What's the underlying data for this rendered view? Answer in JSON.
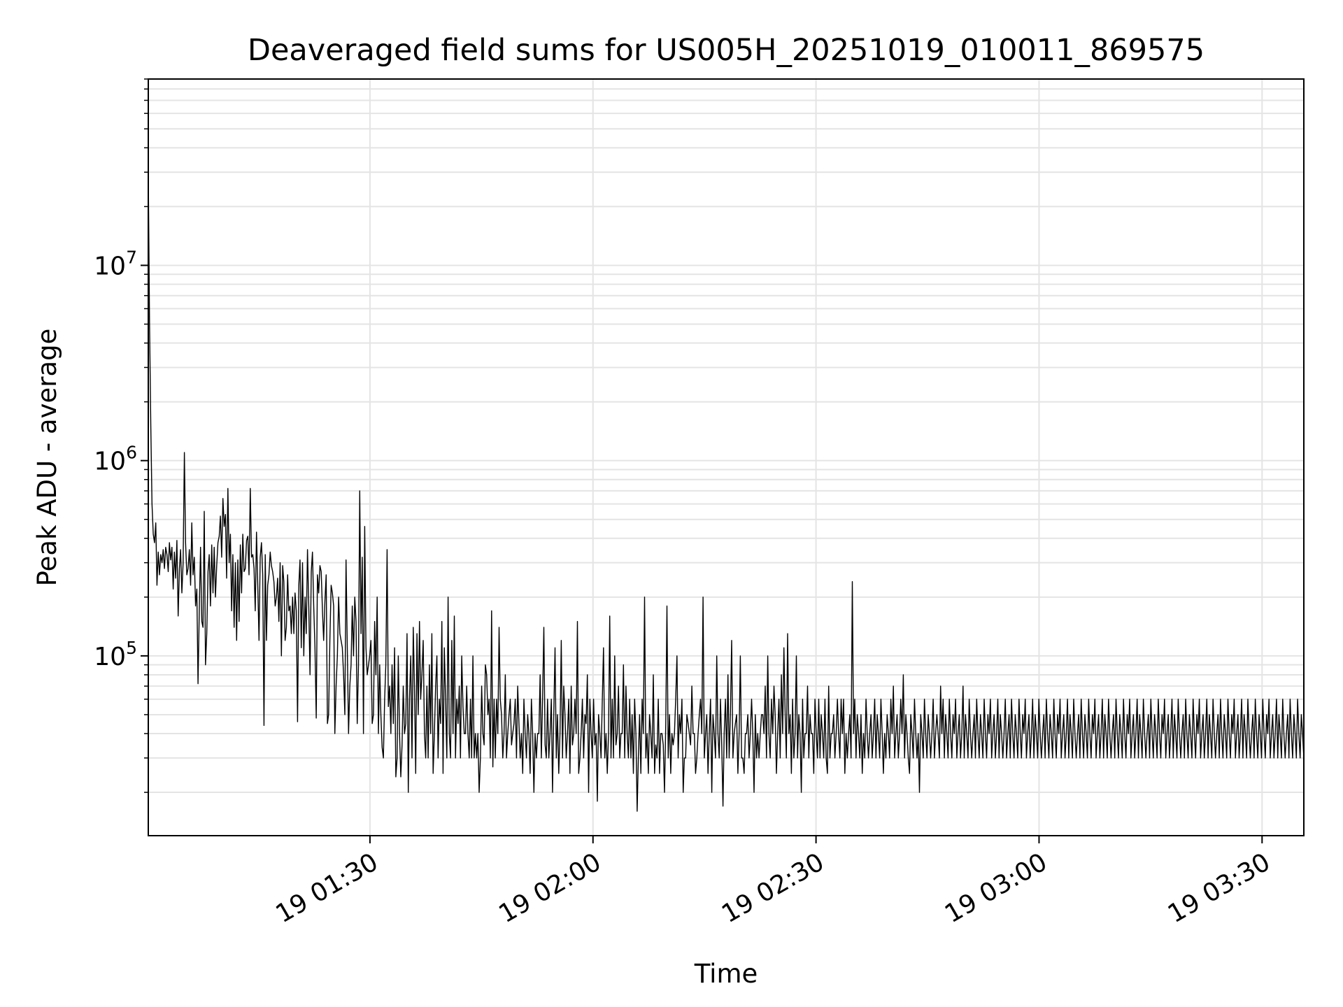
{
  "chart_data": {
    "type": "line",
    "title": "Deaveraged field sums for US005H_20251019_010011_869575",
    "xlabel": "Time",
    "ylabel": "Peak ADU - average",
    "yscale": "log",
    "ylim": [
      12000,
      90000000
    ],
    "xlim": [
      "2025-10-19 01:00:11",
      "2025-10-19 03:35:37"
    ],
    "grid": true,
    "color": "#000000",
    "x_ticks": [
      {
        "time": "2025-10-19 01:30:00",
        "label": "19 01:30"
      },
      {
        "time": "2025-10-19 02:00:00",
        "label": "19 02:00"
      },
      {
        "time": "2025-10-19 02:30:00",
        "label": "19 02:30"
      },
      {
        "time": "2025-10-19 03:00:00",
        "label": "19 03:00"
      },
      {
        "time": "2025-10-19 03:30:00",
        "label": "19 03:30"
      }
    ],
    "y_ticks": [
      {
        "value": 100000,
        "base": "10",
        "exp": "5"
      },
      {
        "value": 1000000,
        "base": "10",
        "exp": "6"
      },
      {
        "value": 10000000,
        "base": "10",
        "exp": "7"
      }
    ],
    "series": [
      {
        "x_start": "2025-10-19 01:00:11",
        "x_end": "2025-10-19 03:35:37",
        "values": [
          30000000,
          5000000,
          1500000,
          600000,
          420000,
          380000,
          480000,
          230000,
          340000,
          260000,
          330000,
          300000,
          350000,
          280000,
          360000,
          330000,
          270000,
          380000,
          310000,
          360000,
          220000,
          340000,
          250000,
          390000,
          160000,
          280000,
          350000,
          210000,
          300000,
          1100000,
          380000,
          260000,
          280000,
          350000,
          230000,
          480000,
          260000,
          320000,
          180000,
          220000,
          72000,
          170000,
          360000,
          150000,
          140000,
          550000,
          90000,
          130000,
          270000,
          330000,
          180000,
          370000,
          210000,
          360000,
          200000,
          290000,
          380000,
          410000,
          520000,
          320000,
          640000,
          460000,
          530000,
          250000,
          720000,
          300000,
          420000,
          170000,
          330000,
          140000,
          300000,
          120000,
          310000,
          150000,
          370000,
          210000,
          420000,
          270000,
          280000,
          390000,
          410000,
          260000,
          720000,
          320000,
          330000,
          280000,
          170000,
          430000,
          230000,
          120000,
          320000,
          380000,
          260000,
          44000,
          330000,
          120000,
          230000,
          260000,
          340000,
          290000,
          270000,
          240000,
          180000,
          200000,
          250000,
          150000,
          300000,
          100000,
          290000,
          240000,
          120000,
          140000,
          260000,
          170000,
          180000,
          130000,
          200000,
          130000,
          210000,
          170000,
          46000,
          230000,
          310000,
          110000,
          300000,
          100000,
          200000,
          130000,
          350000,
          180000,
          80000,
          270000,
          340000,
          180000,
          110000,
          48000,
          260000,
          210000,
          290000,
          270000,
          170000,
          120000,
          190000,
          260000,
          45000,
          50000,
          120000,
          230000,
          210000,
          180000,
          40000,
          70000,
          100000,
          200000,
          130000,
          120000,
          110000,
          80000,
          50000,
          310000,
          110000,
          40000,
          70000,
          90000,
          180000,
          100000,
          200000,
          150000,
          45000,
          90000,
          700000,
          130000,
          320000,
          40000,
          460000,
          110000,
          80000,
          90000,
          100000,
          120000,
          45000,
          50000,
          150000,
          80000,
          200000,
          40000,
          90000,
          50000,
          34000,
          30000,
          60000,
          90000,
          350000,
          55000,
          70000,
          40000,
          90000,
          45000,
          110000,
          24000,
          30000,
          100000,
          40000,
          24000,
          35000,
          70000,
          40000,
          45000,
          130000,
          20000,
          60000,
          100000,
          30000,
          140000,
          70000,
          25000,
          130000,
          50000,
          150000,
          60000,
          80000,
          120000,
          40000,
          30000,
          70000,
          30000,
          90000,
          40000,
          130000,
          25000,
          40000,
          70000,
          100000,
          30000,
          60000,
          45000,
          150000,
          25000,
          110000,
          60000,
          30000,
          200000,
          40000,
          30000,
          120000,
          40000,
          160000,
          30000,
          60000,
          45000,
          70000,
          30000,
          100000,
          55000,
          40000,
          40000,
          70000,
          40000,
          30000,
          60000,
          30000,
          100000,
          30000,
          40000,
          30000,
          40000,
          20000,
          30000,
          70000,
          40000,
          35000,
          90000,
          80000,
          50000,
          60000,
          30000,
          170000,
          27000,
          60000,
          30000,
          60000,
          40000,
          140000,
          60000,
          50000,
          30000,
          40000,
          80000,
          30000,
          40000,
          50000,
          60000,
          35000,
          40000,
          45000,
          60000,
          30000,
          70000,
          45000,
          30000,
          40000,
          25000,
          60000,
          40000,
          30000,
          50000,
          40000,
          25000,
          60000,
          40000,
          20000,
          40000,
          30000,
          40000,
          40000,
          80000,
          30000,
          60000,
          140000,
          35000,
          30000,
          60000,
          30000,
          40000,
          60000,
          20000,
          50000,
          110000,
          30000,
          50000,
          25000,
          40000,
          120000,
          30000,
          70000,
          50000,
          30000,
          40000,
          60000,
          25000,
          70000,
          35000,
          40000,
          60000,
          40000,
          150000,
          25000,
          30000,
          40000,
          60000,
          30000,
          50000,
          45000,
          80000,
          20000,
          60000,
          40000,
          30000,
          60000,
          35000,
          40000,
          18000,
          50000,
          40000,
          30000,
          60000,
          110000,
          30000,
          40000,
          25000,
          40000,
          160000,
          30000,
          60000,
          30000,
          100000,
          35000,
          40000,
          70000,
          30000,
          40000,
          40000,
          90000,
          30000,
          70000,
          40000,
          30000,
          60000,
          30000,
          50000,
          25000,
          60000,
          40000,
          16000,
          30000,
          50000,
          25000,
          60000,
          40000,
          200000,
          30000,
          40000,
          25000,
          50000,
          40000,
          30000,
          80000,
          25000,
          35000,
          30000,
          60000,
          25000,
          40000,
          40000,
          35000,
          20000,
          45000,
          180000,
          30000,
          50000,
          25000,
          40000,
          35000,
          40000,
          60000,
          100000,
          30000,
          50000,
          40000,
          60000,
          20000,
          30000,
          30000,
          50000,
          45000,
          40000,
          35000,
          70000,
          40000,
          40000,
          25000,
          30000,
          40000,
          50000,
          60000,
          40000,
          200000,
          30000,
          40000,
          50000,
          25000,
          40000,
          60000,
          20000,
          50000,
          40000,
          30000,
          100000,
          40000,
          30000,
          60000,
          35000,
          17000,
          40000,
          60000,
          30000,
          80000,
          30000,
          50000,
          120000,
          30000,
          40000,
          45000,
          50000,
          25000,
          40000,
          100000,
          30000,
          30000,
          25000,
          40000,
          40000,
          50000,
          30000,
          40000,
          60000,
          40000,
          20000,
          50000,
          30000,
          40000,
          30000,
          40000,
          50000,
          50000,
          40000,
          70000,
          30000,
          100000,
          40000,
          30000,
          60000,
          40000,
          70000,
          50000,
          25000,
          40000,
          60000,
          30000,
          80000,
          40000,
          110000,
          50000,
          30000,
          130000,
          40000,
          50000,
          25000,
          60000,
          30000,
          40000,
          100000,
          30000,
          50000,
          40000,
          20000,
          60000,
          30000,
          40000,
          40000,
          70000,
          30000,
          50000,
          40000,
          40000,
          25000,
          60000,
          40000,
          30000,
          60000,
          30000,
          50000,
          40000,
          30000,
          60000,
          30000,
          25000,
          70000,
          30000,
          40000,
          40000,
          50000,
          30000,
          40000,
          60000,
          40000,
          30000,
          60000,
          40000,
          60000,
          25000,
          40000,
          30000,
          40000,
          50000,
          30000,
          240000,
          40000,
          60000,
          30000,
          50000,
          40000,
          30000,
          50000,
          25000,
          40000,
          30000,
          60000,
          40000,
          30000,
          40000,
          50000,
          30000,
          40000,
          60000,
          30000,
          50000,
          40000,
          30000,
          60000,
          40000,
          25000,
          40000,
          30000,
          50000,
          40000,
          30000,
          60000,
          40000,
          70000,
          30000,
          40000,
          50000,
          30000,
          40000,
          60000,
          40000,
          80000,
          30000,
          50000,
          40000,
          30000,
          25000,
          50000,
          40000,
          30000,
          60000,
          40000,
          30000,
          40000,
          20000,
          50000,
          40000,
          30000,
          60000,
          40000,
          30000,
          50000,
          40000,
          30000,
          40000,
          60000,
          30000,
          40000,
          50000,
          40000,
          30000,
          70000,
          40000,
          60000,
          30000,
          50000,
          40000,
          30000,
          60000,
          40000,
          30000,
          50000,
          40000,
          60000,
          30000,
          40000,
          50000,
          30000,
          40000,
          70000,
          30000,
          50000,
          40000,
          30000,
          60000,
          40000,
          30000,
          40000,
          50000,
          30000,
          60000,
          40000,
          30000,
          50000,
          40000,
          30000,
          60000,
          40000,
          30000,
          50000,
          40000,
          60000,
          30000,
          40000,
          50000,
          30000,
          40000,
          60000,
          30000,
          50000,
          40000,
          30000,
          40000,
          60000,
          30000,
          40000,
          50000,
          30000,
          60000,
          40000,
          30000,
          50000,
          40000,
          30000,
          60000,
          40000,
          30000,
          50000,
          40000,
          60000,
          30000,
          40000,
          50000,
          30000,
          40000,
          60000,
          30000,
          50000,
          40000,
          30000,
          60000,
          40000,
          30000,
          40000,
          50000,
          30000,
          60000,
          40000,
          30000,
          50000,
          40000,
          30000,
          60000,
          40000,
          30000,
          50000,
          40000,
          60000,
          30000,
          40000,
          50000,
          30000,
          40000,
          60000,
          30000,
          50000,
          40000,
          30000,
          60000,
          40000,
          30000,
          40000,
          50000,
          30000,
          60000,
          40000,
          30000,
          50000,
          40000,
          30000,
          60000,
          40000,
          30000,
          50000,
          40000,
          60000,
          30000,
          40000,
          50000,
          30000,
          40000,
          60000,
          30000,
          50000,
          40000,
          30000,
          60000,
          40000,
          30000,
          40000,
          50000,
          30000,
          60000,
          40000,
          30000,
          50000,
          40000,
          30000,
          60000,
          40000,
          30000,
          50000,
          40000,
          60000,
          30000,
          40000,
          50000,
          30000,
          40000,
          60000,
          30000,
          50000,
          40000,
          30000,
          60000,
          40000,
          30000,
          40000,
          50000,
          30000,
          60000,
          40000,
          30000,
          50000,
          40000,
          30000,
          60000,
          40000,
          30000,
          50000,
          40000,
          60000,
          30000,
          40000,
          50000,
          30000,
          40000,
          60000,
          30000,
          50000,
          40000,
          30000,
          60000,
          40000,
          30000,
          40000,
          50000,
          30000,
          60000,
          40000,
          30000,
          50000,
          40000,
          30000,
          60000,
          40000,
          30000,
          50000,
          40000,
          60000,
          30000,
          40000,
          50000,
          30000,
          40000,
          60000,
          30000,
          50000,
          40000,
          30000,
          60000,
          40000,
          30000,
          40000,
          50000,
          30000,
          60000,
          40000,
          30000,
          50000,
          40000,
          30000,
          60000,
          40000,
          30000,
          50000,
          40000,
          60000,
          30000,
          40000,
          50000,
          30000,
          40000,
          60000,
          30000,
          50000,
          40000,
          30000,
          60000,
          40000,
          30000,
          40000,
          50000,
          30000,
          60000,
          40000,
          30000,
          50000,
          40000,
          30000,
          60000,
          40000,
          30000,
          50000,
          40000,
          60000,
          30000,
          40000,
          50000,
          30000,
          40000,
          60000,
          30000,
          50000,
          40000,
          30000,
          60000,
          40000,
          30000,
          40000,
          50000,
          30000,
          60000,
          40000,
          30000,
          50000,
          40000,
          30000,
          60000,
          40000,
          30000,
          50000,
          40000,
          30000
        ]
      }
    ]
  }
}
